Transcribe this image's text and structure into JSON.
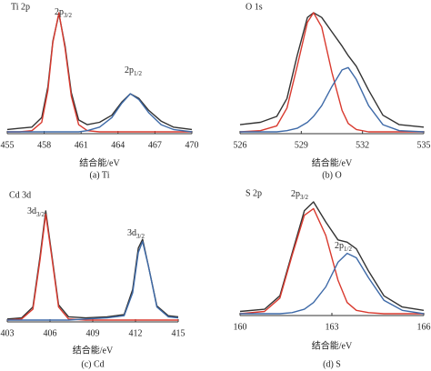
{
  "chart_data": [
    {
      "type": "line",
      "title": "Ti 2p",
      "xlabel": "结合能/eV",
      "caption": "(a) Ti",
      "xlim": [
        455,
        470
      ],
      "xticks": [
        455,
        458,
        461,
        464,
        467,
        470
      ],
      "x": [
        455,
        456,
        457,
        457.8,
        458.3,
        458.7,
        459.2,
        459.7,
        460.2,
        460.8,
        461.5,
        462.5,
        463.5,
        464.3,
        465.0,
        465.7,
        466.5,
        467.5,
        468.5,
        470
      ],
      "series": [
        {
          "color": "#333333",
          "values": [
            2,
            3,
            4,
            12,
            38,
            76,
            99,
            72,
            33,
            10,
            6,
            8,
            14,
            25,
            32,
            28,
            18,
            9,
            4,
            2
          ]
        },
        {
          "color": "#d93a2f",
          "values": [
            0,
            0,
            1,
            8,
            35,
            75,
            100,
            70,
            30,
            6,
            1,
            0,
            0,
            0,
            0,
            0,
            0,
            0,
            0,
            0
          ]
        },
        {
          "color": "#3e6aa8",
          "values": [
            0,
            0,
            0,
            0,
            0,
            0,
            0,
            0,
            0,
            0,
            1,
            4,
            12,
            24,
            32,
            27,
            16,
            6,
            2,
            0
          ]
        }
      ],
      "annotations": [
        {
          "text": "2p",
          "sub": "3/2"
        },
        {
          "text": "2p",
          "sub": "1/2"
        }
      ]
    },
    {
      "type": "line",
      "title": "O 1s",
      "xlabel": "结合能/eV",
      "caption": "(b) O",
      "xlim": [
        526,
        535
      ],
      "xticks": [
        526,
        529,
        532,
        535
      ],
      "x": [
        526,
        527,
        527.8,
        528.3,
        528.8,
        529.3,
        529.6,
        530,
        530.5,
        531,
        531.3,
        531.7,
        532.3,
        533,
        533.8,
        535
      ],
      "series": [
        {
          "color": "#333333",
          "values": [
            6,
            8,
            13,
            28,
            64,
            96,
            100,
            96,
            84,
            72,
            64,
            55,
            35,
            14,
            6,
            4
          ]
        },
        {
          "color": "#d93a2f",
          "values": [
            0,
            1,
            5,
            20,
            55,
            92,
            100,
            88,
            50,
            18,
            7,
            2,
            0,
            0,
            0,
            0
          ]
        },
        {
          "color": "#3e6aa8",
          "values": [
            0,
            0,
            0,
            1,
            3,
            8,
            13,
            22,
            38,
            52,
            54,
            44,
            22,
            6,
            1,
            0
          ]
        }
      ],
      "annotations": []
    },
    {
      "type": "line",
      "title": "Cd 3d",
      "xlabel": "结合能/eV",
      "caption": "(c) Cd",
      "xlim": [
        403,
        415
      ],
      "xticks": [
        403,
        406,
        409,
        412,
        415
      ],
      "x": [
        403,
        404,
        404.8,
        405.3,
        405.7,
        406.1,
        406.6,
        407.3,
        408.5,
        410,
        411.2,
        411.8,
        412.2,
        412.5,
        412.9,
        413.5,
        414.3,
        415
      ],
      "series": [
        {
          "color": "#333333",
          "values": [
            1,
            2,
            12,
            58,
            100,
            62,
            14,
            3,
            2,
            3,
            5,
            28,
            66,
            74,
            50,
            13,
            4,
            3
          ]
        },
        {
          "color": "#d93a2f",
          "values": [
            0,
            1,
            10,
            55,
            97,
            60,
            12,
            1,
            0,
            0,
            0,
            0,
            0,
            0,
            0,
            0,
            0,
            0
          ]
        },
        {
          "color": "#3e6aa8",
          "values": [
            0,
            0,
            0,
            0,
            0,
            0,
            0,
            0,
            1,
            2,
            4,
            25,
            62,
            72,
            50,
            12,
            3,
            2
          ]
        }
      ],
      "annotations": [
        {
          "text": "3d",
          "sub": "3/2"
        },
        {
          "text": "3d",
          "sub": "3/2"
        }
      ]
    },
    {
      "type": "line",
      "title": "S 2p",
      "xlabel": "结合能/eV",
      "caption": "(d) S",
      "xlim": [
        160,
        166
      ],
      "xticks": [
        160,
        163,
        166
      ],
      "x": [
        160,
        160.8,
        161.3,
        161.7,
        162.1,
        162.4,
        162.8,
        163.2,
        163.5,
        163.8,
        164.2,
        164.7,
        165.3,
        166
      ],
      "series": [
        {
          "color": "#333333",
          "values": [
            2,
            4,
            16,
            54,
            92,
            100,
            82,
            66,
            64,
            58,
            38,
            16,
            6,
            3
          ]
        },
        {
          "color": "#d93a2f",
          "values": [
            0,
            2,
            14,
            52,
            88,
            94,
            70,
            30,
            10,
            3,
            1,
            0,
            0,
            0
          ]
        },
        {
          "color": "#3e6aa8",
          "values": [
            0,
            0,
            0,
            1,
            4,
            10,
            24,
            46,
            54,
            50,
            32,
            12,
            3,
            0
          ]
        }
      ],
      "annotations": [
        {
          "text": "2p",
          "sub": "3/2"
        },
        {
          "text": "2p",
          "sub": "1/2"
        }
      ]
    }
  ]
}
